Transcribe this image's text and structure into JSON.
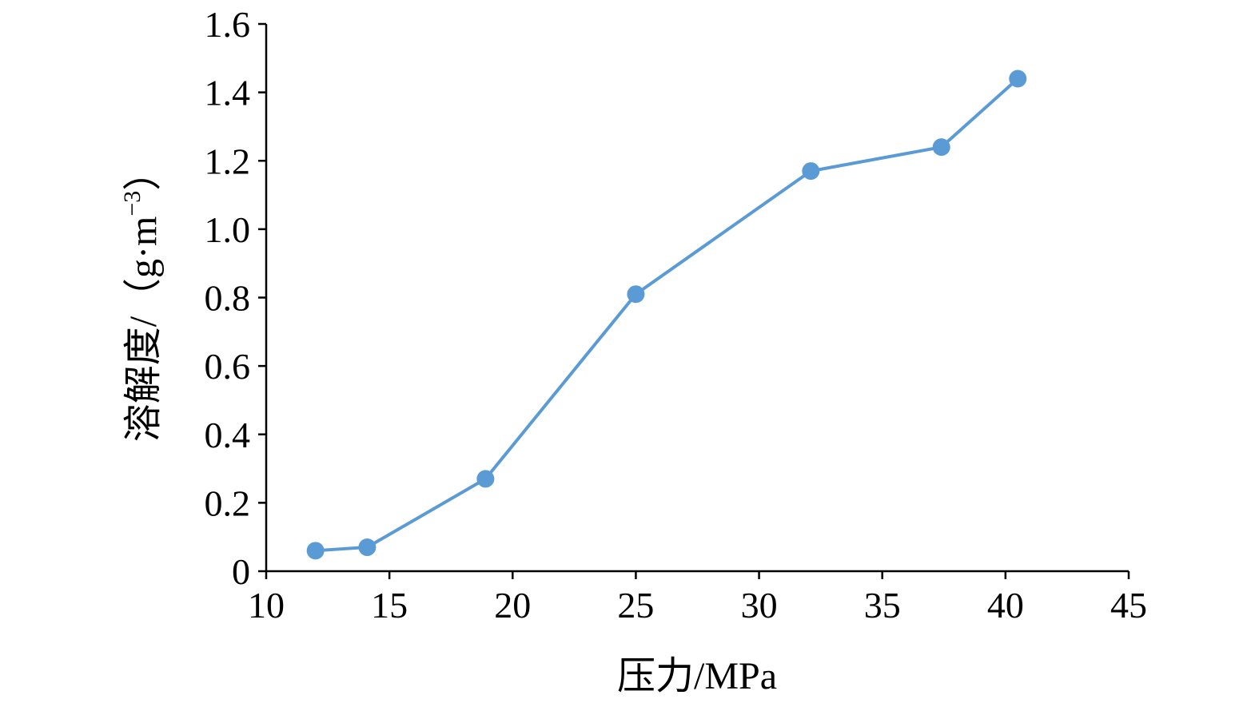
{
  "chart_data": {
    "type": "line",
    "title": "",
    "xlabel": "压力/MPa",
    "ylabel_main": "溶解度/（g·m",
    "ylabel_sup": "−3",
    "ylabel_close": "）",
    "xlim": [
      10,
      45
    ],
    "ylim": [
      0,
      1.6
    ],
    "x_ticks": [
      "10",
      "15",
      "20",
      "25",
      "30",
      "35",
      "40",
      "45"
    ],
    "y_ticks": [
      "0",
      "0.2",
      "0.4",
      "0.6",
      "0.8",
      "1.0",
      "1.2",
      "1.4",
      "1.6"
    ],
    "grid": false,
    "legend": "none",
    "series": [
      {
        "color": "#5B9BD5",
        "x": [
          12.0,
          14.1,
          18.9,
          25.0,
          32.1,
          37.4,
          40.5
        ],
        "y": [
          0.06,
          0.07,
          0.27,
          0.81,
          1.17,
          1.24,
          1.44
        ]
      }
    ]
  }
}
